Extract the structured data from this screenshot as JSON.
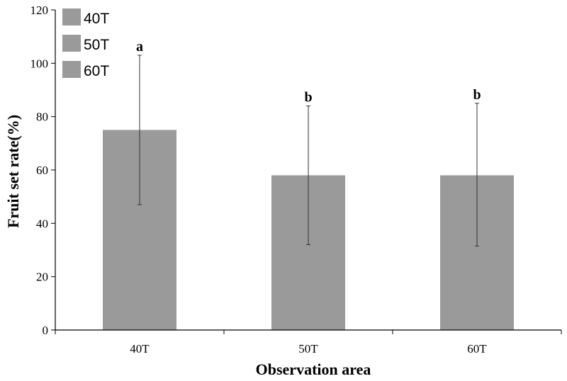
{
  "chart_data": {
    "type": "bar",
    "title": "",
    "xlabel": "Observation area",
    "ylabel": "Fruit set rate(%)",
    "ylim": [
      0,
      120
    ],
    "yticks": [
      0,
      20,
      40,
      60,
      80,
      100,
      120
    ],
    "categories": [
      "40T",
      "50T",
      "60T"
    ],
    "values": [
      75,
      58,
      58
    ],
    "error_upper": [
      103,
      84,
      85
    ],
    "error_lower": [
      47,
      32,
      31.5
    ],
    "significance_letters": [
      "a",
      "b",
      "b"
    ],
    "legend": {
      "position": "top-left",
      "entries": [
        "40T",
        "50T",
        "60T"
      ]
    },
    "colors": {
      "bar": "#9a9a9a",
      "axis": "#000000",
      "error": "#333333"
    },
    "grid": false
  }
}
